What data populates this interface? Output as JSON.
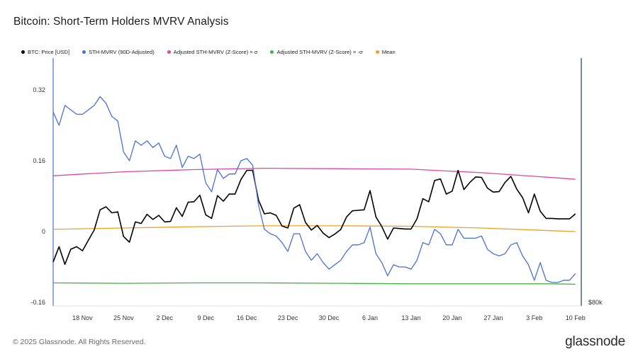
{
  "title": "Bitcoin: Short-Term Holders MVRV Analysis",
  "footer": {
    "copyright": "© 2025 Glassnode. All Rights Reserved.",
    "logo": "glassnode"
  },
  "legend": [
    {
      "label": "BTC: Price [USD]",
      "color": "#000000"
    },
    {
      "label": "STH-MVRV (90D-Adjusted)",
      "color": "#4a6fd8"
    },
    {
      "label": "Adjusted STH-MVRV (Z-Score) = σ",
      "color": "#e0479c"
    },
    {
      "label": "Adjusted STH-MVRV (Z-Score) = -σ",
      "color": "#3fb43f"
    },
    {
      "label": "Mean",
      "color": "#f0a020"
    }
  ],
  "chart_data": {
    "type": "line",
    "title": "Bitcoin: Short-Term Holders MVRV Analysis",
    "x_range": [
      "2024-11-13",
      "2025-02-11"
    ],
    "x_tick_labels": [
      "18 Nov",
      "25 Nov",
      "2 Dec",
      "9 Dec",
      "16 Dec",
      "23 Dec",
      "30 Dec",
      "6 Jan",
      "13 Jan",
      "20 Jan",
      "27 Jan",
      "3 Feb",
      "10 Feb"
    ],
    "y_left": {
      "ticks": [
        "0.32",
        "0.16",
        "0",
        "-0.16"
      ],
      "range": [
        -0.16,
        0.32
      ]
    },
    "y_right": {
      "ticks": [
        "$80k"
      ]
    },
    "grid": false,
    "legend_position": "top",
    "series": [
      {
        "name": "STH-MVRV (90D-Adjusted)",
        "color": "#4a6fd8",
        "axis": "left",
        "x": [
          "2024-11-13",
          "2024-11-14",
          "2024-11-15",
          "2024-11-16",
          "2024-11-17",
          "2024-11-18",
          "2024-11-19",
          "2024-11-20",
          "2024-11-21",
          "2024-11-22",
          "2024-11-23",
          "2024-11-24",
          "2024-11-25",
          "2024-11-26",
          "2024-11-27",
          "2024-11-28",
          "2024-11-29",
          "2024-11-30",
          "2024-12-01",
          "2024-12-02",
          "2024-12-03",
          "2024-12-04",
          "2024-12-05",
          "2024-12-06",
          "2024-12-07",
          "2024-12-08",
          "2024-12-09",
          "2024-12-10",
          "2024-12-11",
          "2024-12-12",
          "2024-12-13",
          "2024-12-14",
          "2024-12-15",
          "2024-12-16",
          "2024-12-17",
          "2024-12-18",
          "2024-12-19",
          "2024-12-20",
          "2024-12-21",
          "2024-12-22",
          "2024-12-23",
          "2024-12-24",
          "2024-12-25",
          "2024-12-26",
          "2024-12-27",
          "2024-12-28",
          "2024-12-29",
          "2024-12-30",
          "2024-12-31",
          "2025-01-01",
          "2025-01-02",
          "2025-01-03",
          "2025-01-04",
          "2025-01-05",
          "2025-01-06",
          "2025-01-07",
          "2025-01-08",
          "2025-01-09",
          "2025-01-10",
          "2025-01-11",
          "2025-01-12",
          "2025-01-13",
          "2025-01-14",
          "2025-01-15",
          "2025-01-16",
          "2025-01-17",
          "2025-01-18",
          "2025-01-19",
          "2025-01-20",
          "2025-01-21",
          "2025-01-22",
          "2025-01-23",
          "2025-01-24",
          "2025-01-25",
          "2025-01-26",
          "2025-01-27",
          "2025-01-28",
          "2025-01-29",
          "2025-01-30",
          "2025-01-31",
          "2025-02-01",
          "2025-02-02",
          "2025-02-03",
          "2025-02-04",
          "2025-02-05",
          "2025-02-06",
          "2025-02-07",
          "2025-02-08",
          "2025-02-09",
          "2025-02-10"
        ],
        "values": [
          0.27,
          0.24,
          0.285,
          0.275,
          0.265,
          0.265,
          0.275,
          0.285,
          0.305,
          0.29,
          0.26,
          0.25,
          0.18,
          0.16,
          0.205,
          0.195,
          0.205,
          0.19,
          0.2,
          0.17,
          0.165,
          0.195,
          0.145,
          0.17,
          0.165,
          0.175,
          0.11,
          0.09,
          0.14,
          0.12,
          0.13,
          0.13,
          0.16,
          0.165,
          0.15,
          0.06,
          0.005,
          -0.005,
          -0.01,
          -0.025,
          -0.045,
          -0.005,
          -0.005,
          -0.045,
          -0.065,
          -0.05,
          -0.07,
          -0.085,
          -0.075,
          -0.065,
          -0.045,
          -0.03,
          -0.03,
          -0.025,
          0.01,
          -0.05,
          -0.07,
          -0.1,
          -0.075,
          -0.08,
          -0.08,
          -0.085,
          -0.065,
          -0.025,
          -0.03,
          0.005,
          -0.005,
          -0.03,
          -0.03,
          0.005,
          -0.015,
          -0.015,
          -0.015,
          -0.01,
          -0.04,
          -0.05,
          -0.055,
          -0.05,
          -0.03,
          -0.025,
          -0.055,
          -0.075,
          -0.11,
          -0.07,
          -0.11,
          -0.115,
          -0.115,
          -0.11,
          -0.11,
          -0.095
        ]
      },
      {
        "name": "BTC: Price [USD]",
        "color": "#000000",
        "axis": "right",
        "x": [
          "2024-11-13",
          "2024-11-14",
          "2024-11-15",
          "2024-11-16",
          "2024-11-17",
          "2024-11-18",
          "2024-11-19",
          "2024-11-20",
          "2024-11-21",
          "2024-11-22",
          "2024-11-23",
          "2024-11-24",
          "2024-11-25",
          "2024-11-26",
          "2024-11-27",
          "2024-11-28",
          "2024-11-29",
          "2024-11-30",
          "2024-12-01",
          "2024-12-02",
          "2024-12-03",
          "2024-12-04",
          "2024-12-05",
          "2024-12-06",
          "2024-12-07",
          "2024-12-08",
          "2024-12-09",
          "2024-12-10",
          "2024-12-11",
          "2024-12-12",
          "2024-12-13",
          "2024-12-14",
          "2024-12-15",
          "2024-12-16",
          "2024-12-17",
          "2024-12-18",
          "2024-12-19",
          "2024-12-20",
          "2024-12-21",
          "2024-12-22",
          "2024-12-23",
          "2024-12-24",
          "2024-12-25",
          "2024-12-26",
          "2024-12-27",
          "2024-12-28",
          "2024-12-29",
          "2024-12-30",
          "2024-12-31",
          "2025-01-01",
          "2025-01-02",
          "2025-01-03",
          "2025-01-04",
          "2025-01-05",
          "2025-01-06",
          "2025-01-07",
          "2025-01-08",
          "2025-01-09",
          "2025-01-10",
          "2025-01-11",
          "2025-01-12",
          "2025-01-13",
          "2025-01-14",
          "2025-01-15",
          "2025-01-16",
          "2025-01-17",
          "2025-01-18",
          "2025-01-19",
          "2025-01-20",
          "2025-01-21",
          "2025-01-22",
          "2025-01-23",
          "2025-01-24",
          "2025-01-25",
          "2025-01-26",
          "2025-01-27",
          "2025-01-28",
          "2025-01-29",
          "2025-01-30",
          "2025-01-31",
          "2025-02-01",
          "2025-02-02",
          "2025-02-03",
          "2025-02-04",
          "2025-02-05",
          "2025-02-06",
          "2025-02-07",
          "2025-02-08",
          "2025-02-09",
          "2025-02-10"
        ],
        "values": [
          88000,
          91000,
          87500,
          90500,
          91000,
          90200,
          92300,
          94300,
          98300,
          98900,
          97700,
          97900,
          93000,
          91900,
          95900,
          95600,
          97400,
          96400,
          97200,
          95900,
          96000,
          98700,
          97000,
          99800,
          99900,
          101200,
          97300,
          96600,
          101100,
          100000,
          101400,
          101400,
          104300,
          106100,
          106100,
          100200,
          97500,
          97700,
          97200,
          95100,
          94700,
          98600,
          99300,
          95800,
          94300,
          95200,
          93700,
          92800,
          93500,
          94400,
          96900,
          98100,
          98200,
          98300,
          102100,
          96900,
          95000,
          92500,
          94700,
          94600,
          94500,
          94500,
          96500,
          100500,
          99900,
          104100,
          104400,
          101400,
          102000,
          106100,
          102300,
          103700,
          104800,
          104700,
          102600,
          101800,
          101900,
          103700,
          104900,
          102400,
          100700,
          97700,
          101400,
          98000,
          96600,
          96600,
          96500,
          96500,
          96500,
          97500
        ]
      },
      {
        "name": "Adjusted STH-MVRV (Z-Score) = σ",
        "color": "#e0479c",
        "axis": "left",
        "x": [
          "2024-11-13",
          "2024-11-25",
          "2024-12-07",
          "2024-12-19",
          "2025-01-01",
          "2025-01-13",
          "2025-01-25",
          "2025-02-06",
          "2025-02-10"
        ],
        "values": [
          0.126,
          0.135,
          0.14,
          0.143,
          0.142,
          0.141,
          0.133,
          0.122,
          0.118
        ]
      },
      {
        "name": "Mean",
        "color": "#f0a020",
        "axis": "left",
        "x": [
          "2024-11-13",
          "2024-11-25",
          "2024-12-07",
          "2024-12-19",
          "2025-01-01",
          "2025-01-13",
          "2025-01-25",
          "2025-02-06",
          "2025-02-10"
        ],
        "values": [
          0.005,
          0.008,
          0.011,
          0.013,
          0.013,
          0.012,
          0.008,
          0.002,
          0
        ]
      },
      {
        "name": "Adjusted STH-MVRV (Z-Score) = -σ",
        "color": "#3fb43f",
        "axis": "left",
        "x": [
          "2024-11-13",
          "2024-11-25",
          "2024-12-07",
          "2024-12-19",
          "2025-01-01",
          "2025-01-13",
          "2025-01-25",
          "2025-02-06",
          "2025-02-10"
        ],
        "values": [
          -0.116,
          -0.117,
          -0.116,
          -0.116,
          -0.117,
          -0.118,
          -0.118,
          -0.118,
          -0.119
        ]
      }
    ]
  }
}
